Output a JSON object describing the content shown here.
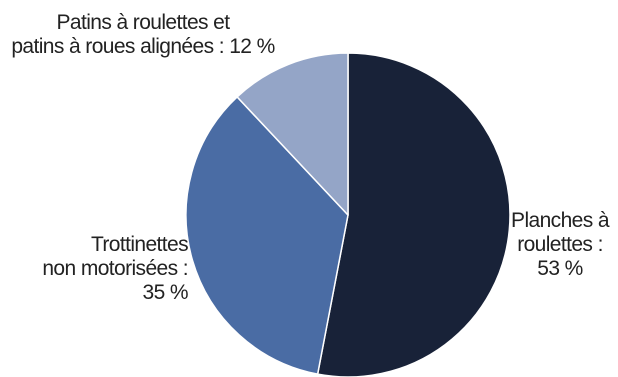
{
  "chart_data": {
    "type": "pie",
    "title": "",
    "colors": [
      "#182238",
      "#4a6ca4",
      "#94a5c7"
    ],
    "slices": [
      {
        "lines": [
          "Planches à",
          "roulettes :",
          "53 %"
        ],
        "value": 53
      },
      {
        "lines": [
          "Trottinettes",
          "non motorisées :",
          "35 %"
        ],
        "value": 35
      },
      {
        "lines": [
          "Patins à roulettes et",
          "patins à roues alignées : 12 %"
        ],
        "value": 12
      }
    ]
  }
}
